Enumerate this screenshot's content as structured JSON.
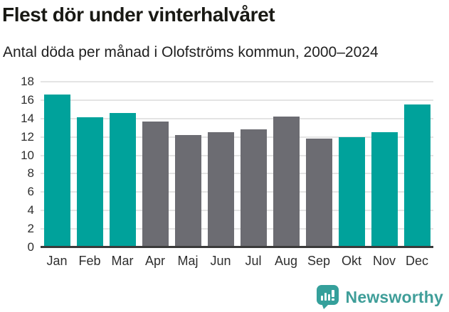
{
  "header": {
    "title": "Flest dör under vinterhalvåret",
    "subtitle": "Antal döda per månad i Olofströms kommun, 2000–2024"
  },
  "chart_data": {
    "type": "bar",
    "title": "Flest dör under vinterhalvåret",
    "subtitle": "Antal döda per månad i Olofströms kommun, 2000–2024",
    "categories": [
      "Jan",
      "Feb",
      "Mar",
      "Apr",
      "Maj",
      "Jun",
      "Jul",
      "Aug",
      "Sep",
      "Okt",
      "Nov",
      "Dec"
    ],
    "values": [
      16.6,
      14.1,
      14.6,
      13.7,
      12.2,
      12.5,
      12.8,
      14.2,
      11.8,
      12.0,
      12.5,
      15.5
    ],
    "highlighted": [
      true,
      true,
      true,
      false,
      false,
      false,
      false,
      false,
      false,
      true,
      true,
      true
    ],
    "xlabel": "",
    "ylabel": "",
    "ylim": [
      0,
      18
    ],
    "yticks": [
      0,
      2,
      4,
      6,
      8,
      10,
      12,
      14,
      16,
      18
    ],
    "grid": true,
    "legend": "none",
    "colors": {
      "highlight": "#00a29b",
      "base": "#6c6c72",
      "gridline": "#e4e4e4",
      "axis_line": "#3a3a3a",
      "tick_text": "#2e2e2e"
    }
  },
  "footer": {
    "brand": "Newsworthy",
    "logo_icon": "speech-bubble-bar-chart-icon",
    "brand_color": "#3f9e99"
  }
}
